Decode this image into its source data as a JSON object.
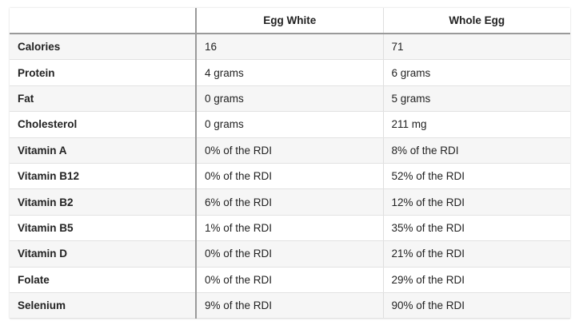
{
  "table": {
    "columns": [
      "",
      "Egg White",
      "Whole Egg"
    ],
    "rows": [
      {
        "label": "Calories",
        "egg_white": "16",
        "whole_egg": "71"
      },
      {
        "label": "Protein",
        "egg_white": "4 grams",
        "whole_egg": "6 grams"
      },
      {
        "label": "Fat",
        "egg_white": "0 grams",
        "whole_egg": "5 grams"
      },
      {
        "label": "Cholesterol",
        "egg_white": "0 grams",
        "whole_egg": "211 mg"
      },
      {
        "label": "Vitamin A",
        "egg_white": "0% of the RDI",
        "whole_egg": "8% of the RDI"
      },
      {
        "label": "Vitamin B12",
        "egg_white": "0% of the RDI",
        "whole_egg": "52% of the RDI"
      },
      {
        "label": "Vitamin B2",
        "egg_white": "6% of the RDI",
        "whole_egg": "12% of the RDI"
      },
      {
        "label": "Vitamin B5",
        "egg_white": "1% of the RDI",
        "whole_egg": "35% of the RDI"
      },
      {
        "label": "Vitamin D",
        "egg_white": "0% of the RDI",
        "whole_egg": "21% of the RDI"
      },
      {
        "label": "Folate",
        "egg_white": "0% of the RDI",
        "whole_egg": "29% of the RDI"
      },
      {
        "label": "Selenium",
        "egg_white": "9% of the RDI",
        "whole_egg": "90% of the RDI"
      }
    ]
  }
}
